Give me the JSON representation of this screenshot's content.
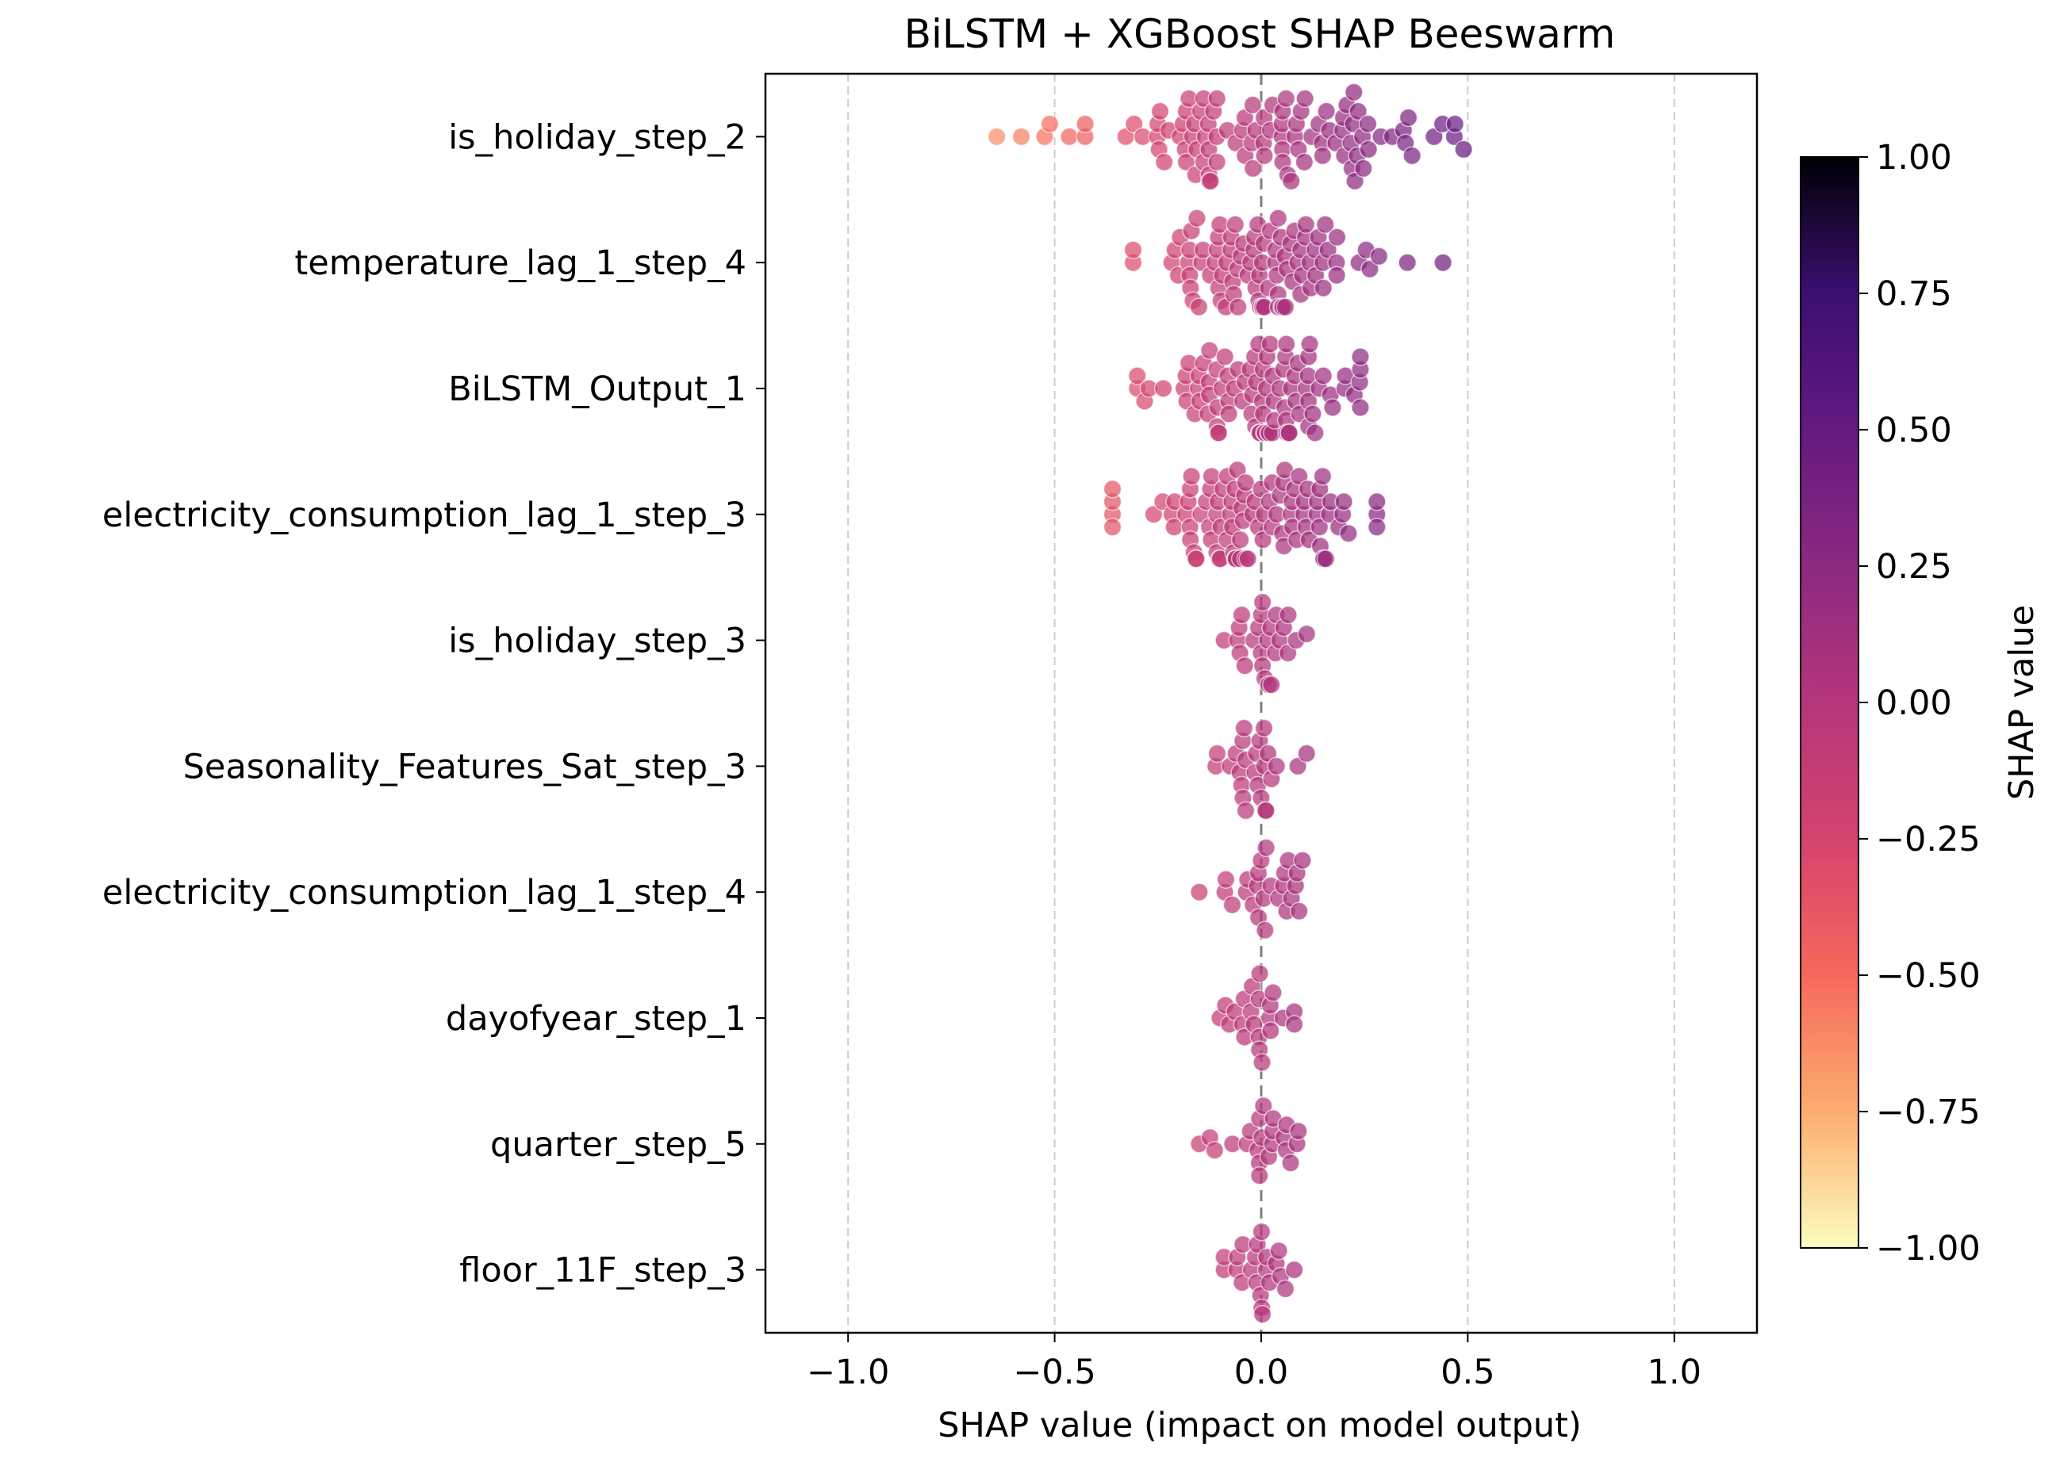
{
  "chart_data": {
    "type": "scatter",
    "subtype": "shap-beeswarm",
    "title": "BiLSTM + XGBoost SHAP Beeswarm",
    "xlabel": "SHAP value (impact on model output)",
    "xlim": [
      -1.2,
      1.2
    ],
    "x_ticks": [
      -1.0,
      -0.5,
      0.0,
      0.5,
      1.0
    ],
    "x_tick_labels": [
      "−1.0",
      "−0.5",
      "0.0",
      "0.5",
      "1.0"
    ],
    "grid": "vertical dashed",
    "reference_line": 0.0,
    "features": [
      {
        "name": "is_holiday_step_2",
        "spread": 0.24,
        "min": -0.64,
        "max": 0.49,
        "points": 100
      },
      {
        "name": "temperature_lag_1_step_4",
        "spread": 0.14,
        "min": -0.31,
        "max": 0.44,
        "points": 90
      },
      {
        "name": "BiLSTM_Output_1",
        "spread": 0.13,
        "min": -0.3,
        "max": 0.24,
        "points": 90
      },
      {
        "name": "electricity_consumption_lag_1_step_3",
        "spread": 0.14,
        "min": -0.36,
        "max": 0.28,
        "points": 95
      },
      {
        "name": "is_holiday_step_3",
        "spread": 0.05,
        "min": -0.09,
        "max": 0.11,
        "points": 25
      },
      {
        "name": "Seasonality_Features_Sat_step_3",
        "spread": 0.05,
        "min": -0.11,
        "max": 0.11,
        "points": 25
      },
      {
        "name": "electricity_consumption_lag_1_step_4",
        "spread": 0.06,
        "min": -0.15,
        "max": 0.1,
        "points": 25
      },
      {
        "name": "dayofyear_step_1",
        "spread": 0.04,
        "min": -0.1,
        "max": 0.08,
        "points": 22
      },
      {
        "name": "quarter_step_5",
        "spread": 0.05,
        "min": -0.15,
        "max": 0.09,
        "points": 22
      },
      {
        "name": "floor_11F_step_3",
        "spread": 0.04,
        "min": -0.09,
        "max": 0.08,
        "points": 22
      }
    ],
    "colorbar": {
      "label": "SHAP value",
      "colormap": "magma_r",
      "range": [
        -1.0,
        1.0
      ],
      "ticks": [
        1.0,
        0.75,
        0.5,
        0.25,
        0.0,
        -0.25,
        -0.5,
        -0.75,
        -1.0
      ],
      "tick_labels": [
        "1.00",
        "0.75",
        "0.50",
        "0.25",
        "0.00",
        "−0.25",
        "−0.50",
        "−0.75",
        "−1.00"
      ],
      "stops": [
        "#fcfdbf",
        "#fcad6f",
        "#f6695c",
        "#d3436e",
        "#b5367a",
        "#8c2981",
        "#641a80",
        "#3b0f70",
        "#000004"
      ]
    },
    "colors": {
      "grid": "#cccccc",
      "zero_line": "#808080",
      "axis": "#000000",
      "marker_edge": "#ffffff"
    }
  }
}
